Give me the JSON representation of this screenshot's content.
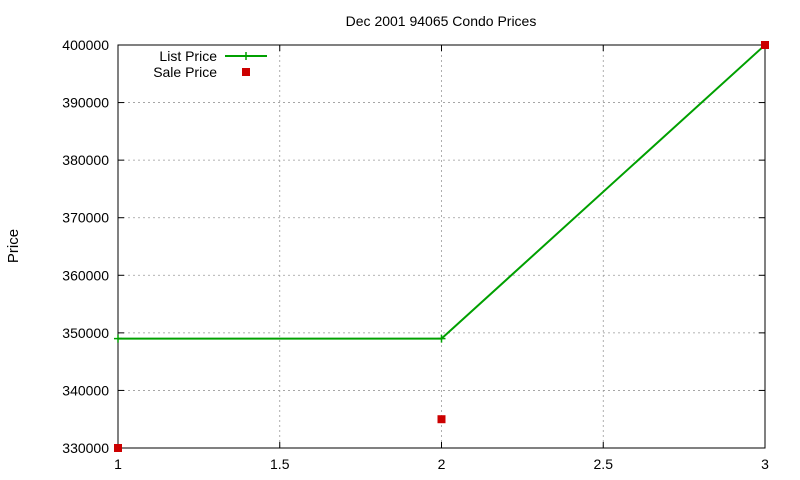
{
  "chart_data": {
    "type": "line",
    "title": "Dec 2001 94065 Condo Prices",
    "xlabel": "",
    "ylabel": "Price",
    "xlim": [
      1,
      3
    ],
    "ylim": [
      330000,
      400000
    ],
    "x_ticks": [
      1,
      1.5,
      2,
      2.5,
      3
    ],
    "y_ticks": [
      330000,
      340000,
      350000,
      360000,
      370000,
      380000,
      390000,
      400000
    ],
    "grid": true,
    "legend_position": "top-left",
    "series": [
      {
        "name": "List Price",
        "style": "linespoints",
        "marker": "plus",
        "color": "#00a000",
        "x": [
          1,
          2,
          3
        ],
        "y": [
          349000,
          349000,
          400000
        ]
      },
      {
        "name": "Sale Price",
        "style": "points",
        "marker": "square",
        "color": "#cc0000",
        "x": [
          1,
          2,
          3
        ],
        "y": [
          330000,
          335000,
          400000
        ]
      }
    ]
  }
}
